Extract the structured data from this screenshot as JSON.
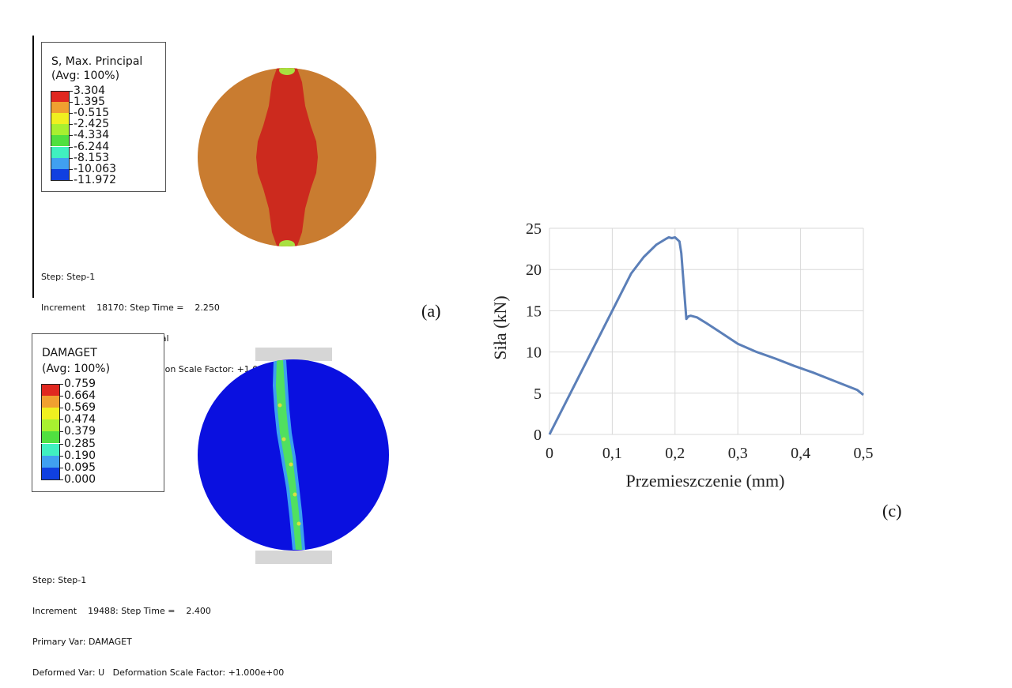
{
  "panel_a": {
    "legend": {
      "title_line1": "S, Max. Principal",
      "title_line2": "(Avg: 100%)",
      "values": [
        "3.304",
        "1.395",
        "-0.515",
        "-2.425",
        "-4.334",
        "-6.244",
        "-8.153",
        "-10.063",
        "-11.972"
      ],
      "colors": [
        "#e02820",
        "#f0a030",
        "#f0f020",
        "#a8f030",
        "#50e040",
        "#40f0c0",
        "#40a0f0",
        "#1040e0"
      ]
    },
    "info": {
      "line1": "Step: Step-1",
      "line2": "Increment    18170: Step Time =    2.250",
      "line3": "Primary Var: S, Max. Principal",
      "line4": "Deformed Var: U   Deformation Scale Factor: +1.000e+00"
    },
    "label": "(a)",
    "colors": {
      "disk": "#c97c30",
      "band": "#cc2a1e",
      "tip": "#a8e040"
    }
  },
  "panel_b": {
    "legend": {
      "title_line1": "DAMAGET",
      "title_line2": "(Avg: 100%)",
      "values": [
        "0.759",
        "0.664",
        "0.569",
        "0.474",
        "0.379",
        "0.285",
        "0.190",
        "0.095",
        "0.000"
      ],
      "colors": [
        "#e02820",
        "#f0a030",
        "#f0f020",
        "#a8f030",
        "#50e040",
        "#40f0c0",
        "#40a0f0",
        "#1040e0"
      ]
    },
    "info": {
      "line1": "Step: Step-1",
      "line2": "Increment    19488: Step Time =    2.400",
      "line3": "Primary Var: DAMAGET",
      "line4": "Deformed Var: U   Deformation Scale Factor: +1.000e+00"
    },
    "colors": {
      "disk": "#0a10e0",
      "crack_outer": "#3aa0f0",
      "crack_inner": "#50e060",
      "crack_core": "#d8e040",
      "plate": "#d6d6d6"
    }
  },
  "panel_c": {
    "label": "(c)"
  },
  "chart_data": {
    "type": "line",
    "title": "",
    "xlabel": "Przemieszczenie (mm)",
    "ylabel": "Siła (kN)",
    "xlim": [
      0,
      0.5
    ],
    "ylim": [
      0,
      25
    ],
    "x_ticks": [
      0,
      0.1,
      0.2,
      0.3,
      0.4,
      0.5
    ],
    "x_tick_labels": [
      "0",
      "0,1",
      "0,2",
      "0,3",
      "0,4",
      "0,5"
    ],
    "y_ticks": [
      0,
      5,
      10,
      15,
      20,
      25
    ],
    "y_tick_labels": [
      "0",
      "5",
      "10",
      "15",
      "20",
      "25"
    ],
    "grid": true,
    "line_color": "#5b7fb8",
    "series": [
      {
        "x": [
          0,
          0.05,
          0.1,
          0.13,
          0.15,
          0.17,
          0.185,
          0.19,
          0.195,
          0.2,
          0.207,
          0.21,
          0.212,
          0.215,
          0.218,
          0.221,
          0.225,
          0.235,
          0.25,
          0.27,
          0.3,
          0.33,
          0.36,
          0.39,
          0.42,
          0.45,
          0.47,
          0.49,
          0.5
        ],
        "y": [
          0,
          7.5,
          15,
          19.5,
          21.5,
          23,
          23.7,
          23.9,
          23.8,
          23.9,
          23.4,
          22,
          20,
          17,
          14,
          14.3,
          14.4,
          14.2,
          13.5,
          12.5,
          11,
          10,
          9.2,
          8.3,
          7.5,
          6.6,
          6,
          5.4,
          4.8
        ]
      }
    ]
  }
}
